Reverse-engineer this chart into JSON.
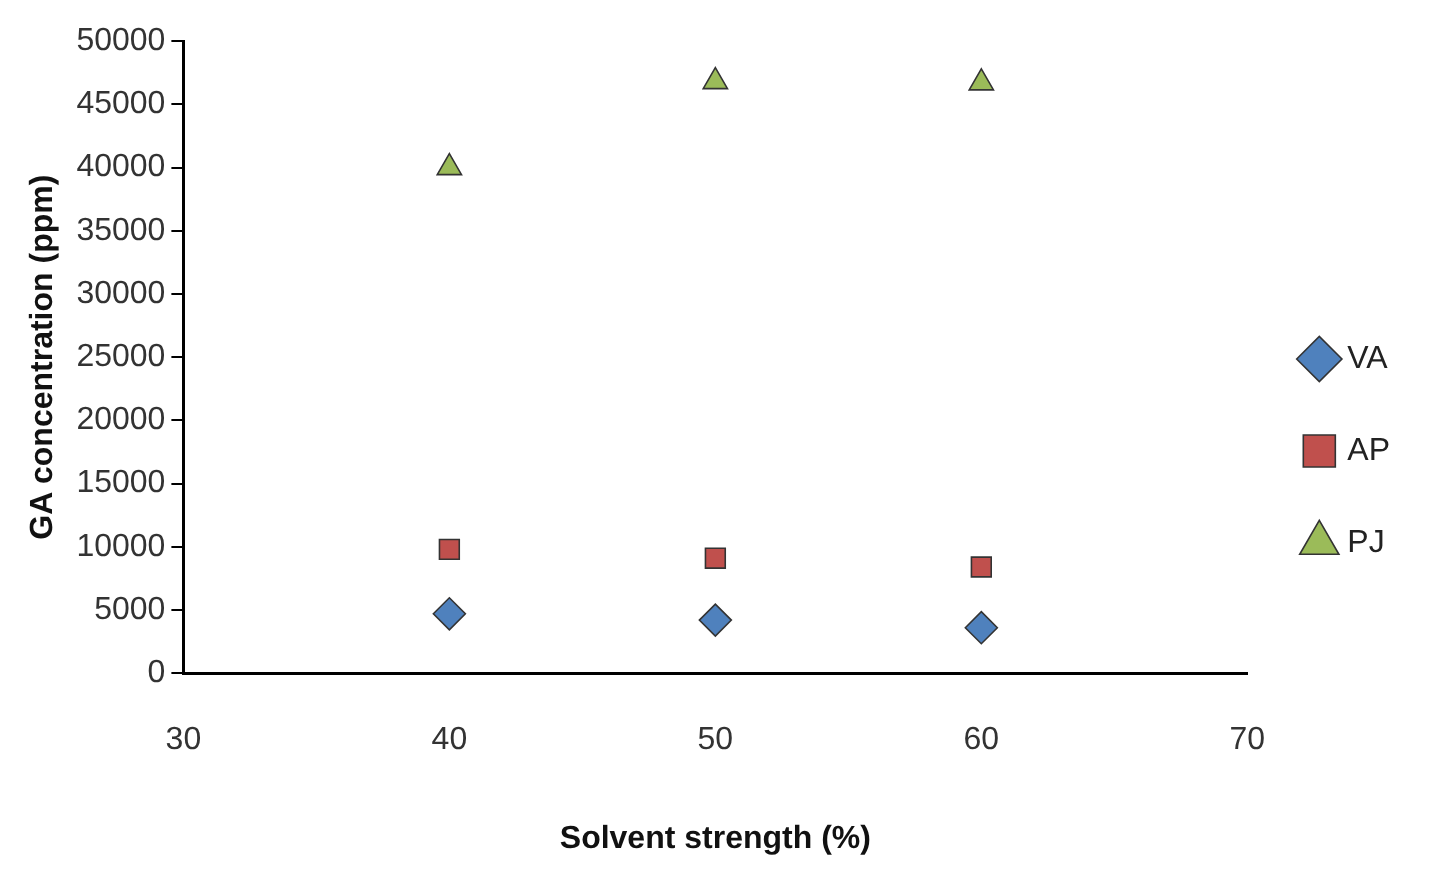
{
  "chart_data": {
    "type": "scatter",
    "xlabel": "Solvent strength (%)",
    "ylabel": "GA concentration (ppm)",
    "x": [
      40,
      50,
      60
    ],
    "xlim": [
      30,
      70
    ],
    "xticks": [
      30,
      40,
      50,
      60,
      70
    ],
    "ylim": [
      0,
      50000
    ],
    "yticks": [
      0,
      5000,
      10000,
      15000,
      20000,
      25000,
      30000,
      35000,
      40000,
      45000,
      50000
    ],
    "grid": false,
    "legend": "right",
    "series": [
      {
        "name": "VA",
        "color": "#4f81bd",
        "marker": "diamond",
        "values": [
          4700,
          4200,
          3600
        ]
      },
      {
        "name": "AP",
        "color": "#c0504d",
        "marker": "square",
        "values": [
          9800,
          9100,
          8400
        ]
      },
      {
        "name": "PJ",
        "color": "#9bbb59",
        "marker": "triangle",
        "values": [
          40000,
          46800,
          46700
        ]
      }
    ]
  }
}
